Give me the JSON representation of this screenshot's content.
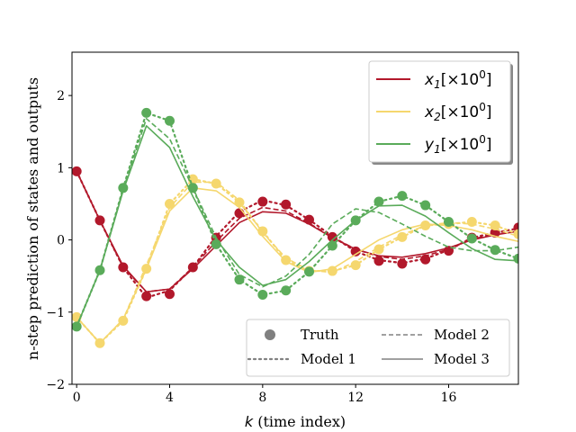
{
  "chart_data": {
    "type": "line",
    "xlabel_var": "k",
    "xlabel_rest": " (time index)",
    "ylabel": "n-step prediction of states and outputs",
    "xlim": [
      -0.2,
      19
    ],
    "ylim": [
      -2,
      2.6
    ],
    "xticks": [
      0,
      4,
      8,
      12,
      16
    ],
    "yticks": [
      -2,
      -1,
      0,
      1,
      2
    ],
    "x": [
      0,
      1,
      2,
      3,
      4,
      5,
      6,
      7,
      8,
      9,
      10,
      11,
      12,
      13,
      14,
      15,
      16,
      17,
      18,
      19
    ],
    "series": [
      {
        "name": "x_1[×10^0]",
        "name_main": "x",
        "name_sub": "1",
        "name_rest": "[×10",
        "name_sup": "0",
        "name_end": "]",
        "color": "#b2182b",
        "truth": [
          0.95,
          0.27,
          -0.38,
          -0.78,
          -0.75,
          -0.38,
          0.03,
          0.37,
          0.53,
          0.49,
          0.28,
          0.04,
          -0.16,
          -0.29,
          -0.33,
          -0.27,
          -0.15,
          0.03,
          0.1,
          0.17
        ],
        "model1": [
          0.95,
          0.27,
          -0.38,
          -0.8,
          -0.7,
          -0.38,
          0.05,
          0.39,
          0.55,
          0.48,
          0.28,
          0.05,
          -0.16,
          -0.28,
          -0.32,
          -0.26,
          -0.14,
          0.03,
          0.1,
          0.16
        ],
        "model2": [
          0.95,
          0.27,
          -0.38,
          -0.72,
          -0.68,
          -0.38,
          -0.02,
          0.3,
          0.45,
          0.4,
          0.23,
          0.04,
          -0.13,
          -0.23,
          -0.27,
          -0.22,
          -0.13,
          0.01,
          0.08,
          0.12
        ],
        "model3": [
          0.95,
          0.27,
          -0.36,
          -0.72,
          -0.68,
          -0.4,
          -0.08,
          0.24,
          0.39,
          0.37,
          0.22,
          0.03,
          -0.13,
          -0.22,
          -0.24,
          -0.19,
          -0.11,
          0.0,
          0.07,
          0.12
        ]
      },
      {
        "name": "x_2[×10^0]",
        "name_main": "x",
        "name_sub": "2",
        "name_rest": "[×10",
        "name_sup": "0",
        "name_end": "]",
        "color": "#f5d76e",
        "truth": [
          -1.07,
          -1.43,
          -1.12,
          -0.4,
          0.5,
          0.84,
          0.78,
          0.52,
          0.12,
          -0.28,
          -0.43,
          -0.43,
          -0.35,
          -0.13,
          0.04,
          0.2,
          0.22,
          0.25,
          0.2,
          0.08
        ],
        "model1": [
          -1.07,
          -1.43,
          -1.12,
          -0.4,
          0.5,
          0.84,
          0.78,
          0.52,
          0.12,
          -0.28,
          -0.43,
          -0.43,
          -0.35,
          -0.13,
          0.04,
          0.2,
          0.22,
          0.25,
          0.2,
          0.08
        ],
        "model2": [
          -1.07,
          -1.43,
          -1.1,
          -0.35,
          0.45,
          0.8,
          0.8,
          0.55,
          0.1,
          -0.25,
          -0.42,
          -0.45,
          -0.3,
          -0.1,
          0.07,
          0.2,
          0.24,
          0.22,
          0.15,
          0.05
        ],
        "model3": [
          -1.07,
          -1.43,
          -1.1,
          -0.4,
          0.4,
          0.72,
          0.68,
          0.45,
          0.05,
          -0.3,
          -0.45,
          -0.4,
          -0.2,
          0.0,
          0.14,
          0.22,
          0.2,
          0.14,
          0.05,
          -0.02
        ]
      },
      {
        "name": "y_1[×10^0]",
        "name_main": "y",
        "name_sub": "1",
        "name_rest": "[×10",
        "name_sup": "0",
        "name_end": "]",
        "color": "#5aab5a",
        "truth": [
          -1.2,
          -0.42,
          0.72,
          1.76,
          1.65,
          0.72,
          -0.06,
          -0.55,
          -0.76,
          -0.7,
          -0.44,
          -0.08,
          0.27,
          0.53,
          0.61,
          0.48,
          0.25,
          0.02,
          -0.14,
          -0.26
        ],
        "model1": [
          -1.2,
          -0.42,
          0.72,
          1.76,
          1.65,
          0.72,
          -0.06,
          -0.55,
          -0.76,
          -0.7,
          -0.44,
          -0.08,
          0.27,
          0.53,
          0.61,
          0.48,
          0.25,
          0.02,
          -0.14,
          -0.26
        ],
        "model2": [
          -1.2,
          -0.42,
          0.7,
          1.68,
          1.4,
          0.72,
          0.03,
          -0.48,
          -0.65,
          -0.5,
          -0.2,
          0.22,
          0.43,
          0.38,
          0.22,
          0.05,
          -0.1,
          -0.15,
          -0.15,
          -0.1
        ],
        "model3": [
          -1.2,
          -0.42,
          0.68,
          1.58,
          1.28,
          0.6,
          0.0,
          -0.38,
          -0.63,
          -0.55,
          -0.3,
          0.0,
          0.27,
          0.47,
          0.48,
          0.33,
          0.1,
          -0.12,
          -0.27,
          -0.29
        ]
      }
    ],
    "legend_series_placement": "top-right",
    "legend_models_placement": "bottom-right",
    "legend_models": [
      {
        "label": "Truth",
        "style": "marker"
      },
      {
        "label": "Model 1",
        "style": "dotted"
      },
      {
        "label": "Model 2",
        "style": "dashed"
      },
      {
        "label": "Model 3",
        "style": "solid"
      }
    ]
  }
}
